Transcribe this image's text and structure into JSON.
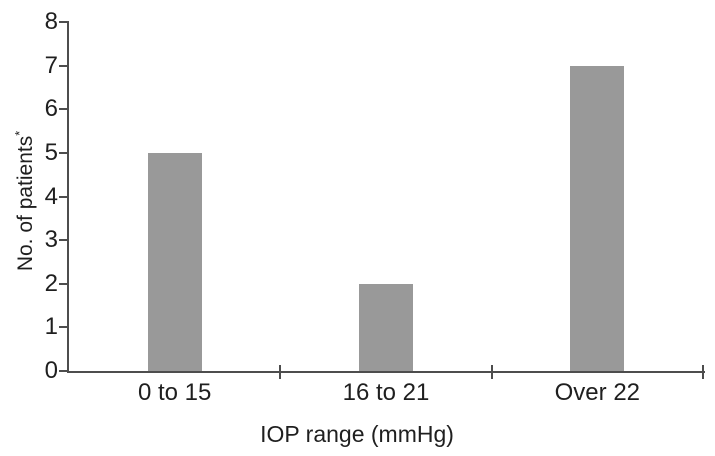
{
  "chart_data": {
    "type": "bar",
    "categories": [
      "0 to 15",
      "16 to 21",
      "Over 22"
    ],
    "values": [
      5,
      2,
      7
    ],
    "title": "",
    "xlabel": "IOP range (mmHg)",
    "ylabel": "No. of patients",
    "ylabel_superscript": "*",
    "ylim": [
      0,
      8
    ],
    "yticks": [
      0,
      1,
      2,
      3,
      4,
      5,
      6,
      7,
      8
    ],
    "grid": false,
    "legend": "none",
    "bar_color": "#999999",
    "axis_color": "#4d4d4d",
    "text_color": "#1f1f1f",
    "background_color": "#ffffff"
  }
}
